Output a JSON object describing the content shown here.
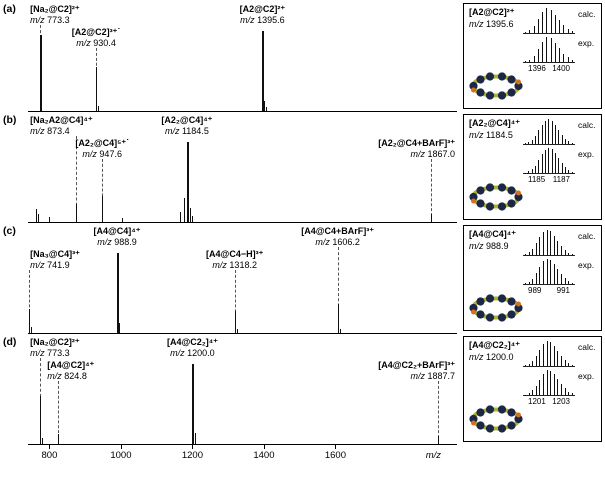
{
  "colors": {
    "peak": "#111111",
    "dash_line": "#555555",
    "molecule_navy": "#1c2747",
    "molecule_green": "#a9b42e",
    "molecule_orange": "#d4701e"
  },
  "chart_data": {
    "type": "bar",
    "title": "",
    "xlabel": "m/z",
    "ylabel": "",
    "mz_prefix": "m/z",
    "x_range": [
      740,
      1940
    ],
    "x_ticks": [
      800,
      1000,
      1200,
      1400,
      1600
    ],
    "grid": false,
    "iso_labels": {
      "calc": "calc.",
      "exp": "exp."
    },
    "spectra": [
      {
        "tag": "(a)",
        "peaks": [
          [
            773.3,
            0.95
          ],
          [
            777,
            0.1
          ],
          [
            930.4,
            0.55
          ],
          [
            935,
            0.06
          ],
          [
            1395.6,
            1.0
          ],
          [
            1401,
            0.12
          ],
          [
            1407,
            0.05
          ]
        ],
        "annotations": [
          {
            "formula": "[Na₂@C2]²⁺",
            "mz": "773.3",
            "at": 773.3,
            "row": 0,
            "align": "left",
            "lx": 0.5,
            "dash": true
          },
          {
            "formula": "[A2@C2]³⁺˙",
            "mz": "930.4",
            "at": 930.4,
            "row": 1,
            "align": "center",
            "dash": true
          },
          {
            "formula": "[A2@C2]²⁺",
            "mz": "1395.6",
            "at": 1395.6,
            "row": 0,
            "align": "center",
            "dash": false
          }
        ],
        "inset": {
          "formula": "[A2@C2]²⁺",
          "mz": "1395.6",
          "ticks": [
            "1396",
            "1400"
          ],
          "calc": [
            4,
            12,
            30,
            58,
            85,
            100,
            94,
            74,
            52,
            32,
            17,
            8
          ],
          "exp": [
            3,
            10,
            26,
            52,
            80,
            100,
            97,
            78,
            55,
            34,
            19,
            9
          ]
        }
      },
      {
        "tag": "(b)",
        "peaks": [
          [
            762,
            0.16
          ],
          [
            768,
            0.1
          ],
          [
            800,
            0.06
          ],
          [
            873.4,
            0.23
          ],
          [
            947.6,
            0.32
          ],
          [
            1004,
            0.05
          ],
          [
            1166,
            0.12
          ],
          [
            1177,
            0.3
          ],
          [
            1184.5,
            1.0
          ],
          [
            1192,
            0.17
          ],
          [
            1200,
            0.07
          ],
          [
            1867.0,
            0.1
          ]
        ],
        "annotations": [
          {
            "formula": "[Na₂A2@C4]⁴⁺",
            "mz": "873.4",
            "at": 873.4,
            "row": 0,
            "align": "left",
            "lx": 0.5,
            "dash": true
          },
          {
            "formula": "[A2₂@C4]⁵⁺˙",
            "mz": "947.6",
            "at": 947.6,
            "row": 1,
            "align": "center",
            "dash": true
          },
          {
            "formula": "[A2₂@C4]⁴⁺",
            "mz": "1184.5",
            "at": 1184.5,
            "row": 0,
            "align": "center",
            "dash": false
          },
          {
            "formula": "[A2₂@C4+BArF]³⁺",
            "mz": "1867.0",
            "at": 1867.0,
            "row": 1,
            "align": "right",
            "dash": true
          }
        ],
        "inset": {
          "formula": "[A2₂@C4]⁴⁺",
          "mz": "1184.5",
          "ticks": [
            "1185",
            "1187"
          ],
          "calc": [
            3,
            8,
            18,
            34,
            56,
            78,
            94,
            100,
            94,
            78,
            58,
            38,
            22,
            11,
            5
          ],
          "exp": [
            2,
            7,
            15,
            30,
            52,
            75,
            93,
            100,
            96,
            82,
            62,
            42,
            25,
            13,
            6
          ]
        }
      },
      {
        "tag": "(c)",
        "peaks": [
          [
            741.9,
            0.3
          ],
          [
            747,
            0.07
          ],
          [
            988.9,
            1.0
          ],
          [
            995,
            0.12
          ],
          [
            1318.2,
            0.27
          ],
          [
            1324,
            0.05
          ],
          [
            1606.2,
            0.36
          ],
          [
            1612,
            0.05
          ]
        ],
        "annotations": [
          {
            "formula": "[Na₃@C4]³⁺",
            "mz": "741.9",
            "at": 741.9,
            "row": 1,
            "align": "left",
            "lx": 0.5,
            "dash": true
          },
          {
            "formula": "[A4@C4]⁴⁺",
            "mz": "988.9",
            "at": 988.9,
            "row": 0,
            "align": "center",
            "dash": false
          },
          {
            "formula": "[A4@C4−H]³⁺",
            "mz": "1318.2",
            "at": 1318.2,
            "row": 1,
            "align": "center",
            "dash": true
          },
          {
            "formula": "[A4@C4+BArF]³⁺",
            "mz": "1606.2",
            "at": 1606.2,
            "row": 0,
            "align": "center",
            "dash": true
          }
        ],
        "inset": {
          "formula": "[A4@C4]⁴⁺",
          "mz": "988.9",
          "ticks": [
            "989",
            "991"
          ],
          "calc": [
            4,
            11,
            26,
            48,
            72,
            92,
            100,
            95,
            78,
            57,
            37,
            21,
            10,
            4
          ],
          "exp": [
            3,
            9,
            22,
            44,
            70,
            91,
            100,
            97,
            82,
            60,
            40,
            23,
            12,
            5
          ]
        }
      },
      {
        "tag": "(d)",
        "peaks": [
          [
            773.3,
            0.6
          ],
          [
            779,
            0.08
          ],
          [
            824.8,
            0.12
          ],
          [
            1200.0,
            1.0
          ],
          [
            1207,
            0.14
          ],
          [
            1887.7,
            0.1
          ]
        ],
        "annotations": [
          {
            "formula": "[Na₂@C2]²⁺",
            "mz": "773.3",
            "at": 773.3,
            "row": 0,
            "align": "left",
            "lx": 0.5,
            "dash": true
          },
          {
            "formula": "[A4@C2]⁴⁺",
            "mz": "824.8",
            "at": 824.8,
            "row": 1,
            "align": "left",
            "lx": 4.5,
            "dash": true
          },
          {
            "formula": "[A4@C2₂]⁴⁺",
            "mz": "1200.0",
            "at": 1200.0,
            "row": 0,
            "align": "center",
            "dash": false
          },
          {
            "formula": "[A4@C2₂+BArF]³⁺",
            "mz": "1887.7",
            "at": 1887.7,
            "row": 1,
            "align": "right",
            "dash": true
          }
        ],
        "inset": {
          "formula": "[A4@C2₂]⁴⁺",
          "mz": "1200.0",
          "ticks": [
            "1201",
            "1203"
          ],
          "calc": [
            3,
            9,
            21,
            42,
            66,
            88,
            100,
            97,
            82,
            62,
            42,
            25,
            13,
            6
          ],
          "exp": [
            2,
            8,
            19,
            38,
            62,
            86,
            100,
            98,
            85,
            65,
            45,
            27,
            14,
            7
          ]
        }
      }
    ]
  }
}
